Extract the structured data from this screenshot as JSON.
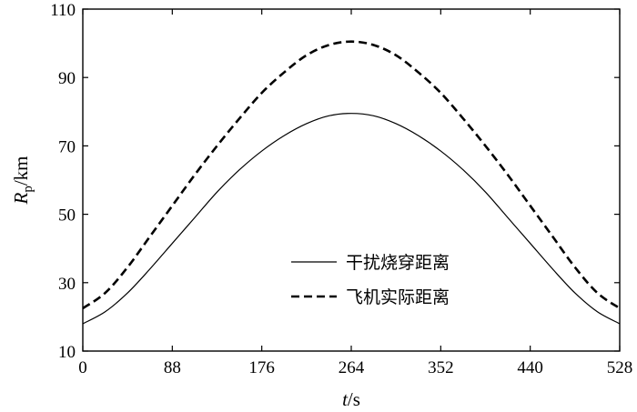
{
  "chart_data": {
    "type": "line",
    "xlabel": {
      "italic": "t",
      "unit": "/s"
    },
    "ylabel": {
      "italic": "R",
      "subscript": "p",
      "unit": "/km"
    },
    "xlim": [
      0,
      528
    ],
    "ylim": [
      10,
      110
    ],
    "xticks": [
      0,
      88,
      176,
      264,
      352,
      440,
      528
    ],
    "yticks": [
      10,
      30,
      50,
      70,
      90,
      110
    ],
    "grid": false,
    "legend_position": "lower-right",
    "series": [
      {
        "name": "干扰烧穿距离",
        "style": "solid",
        "color": "#000000",
        "x": [
          0,
          22,
          44,
          66,
          88,
          110,
          132,
          154,
          176,
          198,
          220,
          242,
          264,
          286,
          308,
          330,
          352,
          374,
          396,
          418,
          440,
          462,
          484,
          506,
          528
        ],
        "y": [
          18.0,
          21.5,
          27.0,
          34.0,
          41.5,
          49.0,
          56.5,
          63.0,
          68.5,
          73.0,
          76.5,
          78.8,
          79.5,
          78.8,
          76.5,
          73.0,
          68.5,
          63.0,
          56.5,
          49.0,
          41.5,
          34.0,
          27.0,
          21.5,
          18.0
        ]
      },
      {
        "name": "飞机实际距离",
        "style": "dashed",
        "color": "#000000",
        "x": [
          0,
          22,
          44,
          66,
          88,
          110,
          132,
          154,
          176,
          198,
          220,
          242,
          264,
          286,
          308,
          330,
          352,
          374,
          396,
          418,
          440,
          462,
          484,
          506,
          528
        ],
        "y": [
          22.5,
          27.0,
          34.5,
          43.5,
          52.5,
          61.5,
          70.0,
          78.0,
          85.5,
          91.5,
          96.5,
          99.5,
          100.5,
          99.5,
          96.5,
          91.5,
          85.5,
          78.0,
          70.0,
          61.5,
          52.5,
          43.5,
          34.5,
          27.0,
          22.5
        ]
      }
    ]
  }
}
